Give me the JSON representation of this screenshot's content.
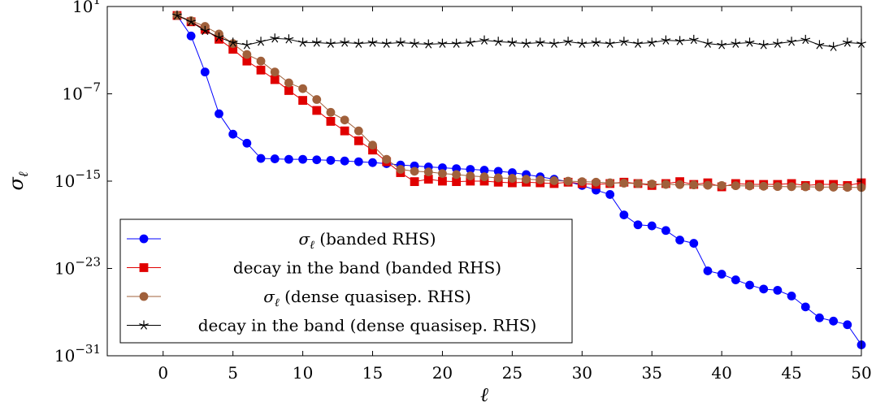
{
  "chart_data": {
    "type": "line",
    "xlabel": "ℓ",
    "ylabel": "σℓ",
    "x_scale": "linear",
    "y_scale": "log",
    "xlim": [
      -4,
      50
    ],
    "ylim": [
      1e-31,
      10.0
    ],
    "x_ticks": [
      0,
      5,
      10,
      15,
      20,
      25,
      30,
      35,
      40,
      45,
      50
    ],
    "x_tick_labels": [
      "0",
      "5",
      "10",
      "15",
      "20",
      "25",
      "30",
      "35",
      "40",
      "45",
      "50"
    ],
    "y_ticks": [
      {
        "value": 10.0,
        "base": "10",
        "exponent": "1"
      },
      {
        "value": 1e-07,
        "base": "10",
        "exponent": "−7"
      },
      {
        "value": 1e-15,
        "base": "10",
        "exponent": "−15"
      },
      {
        "value": 1e-23,
        "base": "10",
        "exponent": "−23"
      },
      {
        "value": 1e-31,
        "base": "10",
        "exponent": "−31"
      }
    ],
    "grid": false,
    "legend_position": "bottom-left",
    "series": [
      {
        "name": "σℓ (banded RHS)",
        "color": "#0000ff",
        "marker": "circle",
        "x": [
          1,
          2,
          3,
          4,
          5,
          6,
          7,
          8,
          9,
          10,
          11,
          12,
          13,
          14,
          15,
          16,
          17,
          18,
          19,
          20,
          21,
          22,
          23,
          24,
          25,
          26,
          27,
          28,
          29,
          30,
          31,
          32,
          33,
          34,
          35,
          36,
          37,
          38,
          39,
          40,
          41,
          42,
          43,
          44,
          45,
          46,
          47,
          48,
          49,
          50
        ],
        "y": [
          1.5,
          0.02,
          1e-05,
          1.5e-09,
          2e-11,
          3e-12,
          1.2e-13,
          1.1e-13,
          1e-13,
          1e-13,
          9e-14,
          8e-14,
          7e-14,
          6e-14,
          5e-14,
          4e-14,
          3e-14,
          2.5e-14,
          2e-14,
          1.7e-14,
          1.4e-14,
          1.2e-14,
          1e-14,
          8e-15,
          6e-15,
          4e-15,
          2.5e-15,
          1.5e-15,
          9e-16,
          4e-16,
          1.5e-16,
          6e-17,
          8e-19,
          1e-19,
          8e-20,
          3e-20,
          4e-21,
          2e-21,
          6e-24,
          3e-24,
          9e-25,
          3e-25,
          1.3e-25,
          1e-25,
          3e-26,
          3e-27,
          3e-28,
          1.5e-28,
          7e-29,
          1e-30
        ]
      },
      {
        "name": "decay in the band (banded RHS)",
        "color": "#e00000",
        "marker": "square",
        "x": [
          1,
          2,
          3,
          4,
          5,
          6,
          7,
          8,
          9,
          10,
          11,
          12,
          13,
          14,
          15,
          16,
          17,
          18,
          19,
          20,
          21,
          22,
          23,
          24,
          25,
          26,
          27,
          28,
          29,
          30,
          31,
          32,
          33,
          34,
          35,
          36,
          37,
          38,
          39,
          40,
          41,
          42,
          43,
          44,
          45,
          46,
          47,
          48,
          49,
          50
        ],
        "y": [
          1.5,
          0.4,
          0.08,
          0.01,
          0.0012,
          0.0001,
          1.5e-05,
          2e-06,
          2e-07,
          2.5e-08,
          3e-09,
          3e-10,
          4e-11,
          5e-12,
          7e-13,
          6e-14,
          6e-15,
          9e-16,
          1.5e-15,
          1e-15,
          9e-16,
          1e-15,
          1e-15,
          8e-16,
          7e-16,
          8e-16,
          7e-16,
          6e-16,
          8e-16,
          6e-16,
          5e-16,
          6e-16,
          8e-16,
          6e-16,
          4e-16,
          6e-16,
          9e-16,
          5e-16,
          7e-16,
          3e-16,
          6e-16,
          5e-16,
          5e-16,
          5e-16,
          6e-16,
          4e-16,
          5e-16,
          5e-16,
          4e-16,
          7e-16
        ]
      },
      {
        "name": "σℓ (dense quasisep. RHS)",
        "color": "#a0603b",
        "marker": "circle",
        "x": [
          1,
          2,
          3,
          4,
          5,
          6,
          7,
          8,
          9,
          10,
          11,
          12,
          13,
          14,
          15,
          16,
          17,
          18,
          19,
          20,
          21,
          22,
          23,
          24,
          25,
          26,
          27,
          28,
          29,
          30,
          31,
          32,
          33,
          34,
          35,
          36,
          37,
          38,
          39,
          40,
          41,
          42,
          43,
          44,
          45,
          46,
          47,
          48,
          49,
          50
        ],
        "y": [
          1.5,
          0.5,
          0.15,
          0.03,
          0.004,
          0.0004,
          0.0001,
          1e-05,
          1e-06,
          3e-07,
          3e-08,
          2e-09,
          4e-10,
          4e-11,
          2e-12,
          1e-13,
          1.2e-14,
          8e-15,
          7e-15,
          5e-15,
          4e-15,
          3e-15,
          2.5e-15,
          2e-15,
          1.8e-15,
          1.5e-15,
          1.3e-15,
          1.1e-15,
          1e-15,
          9e-16,
          8e-16,
          7e-16,
          6.5e-16,
          6e-16,
          5.5e-16,
          5e-16,
          4.8e-16,
          4.5e-16,
          4.2e-16,
          4e-16,
          3.8e-16,
          3.6e-16,
          3.4e-16,
          3.2e-16,
          3.1e-16,
          3e-16,
          2.9e-16,
          2.8e-16,
          2.7e-16,
          2.6e-16
        ]
      },
      {
        "name": "decay in the band (dense quasisep. RHS)",
        "color": "#000000",
        "marker": "star",
        "x": [
          1,
          2,
          3,
          4,
          5,
          6,
          7,
          8,
          9,
          10,
          11,
          12,
          13,
          14,
          15,
          16,
          17,
          18,
          19,
          20,
          21,
          22,
          23,
          24,
          25,
          26,
          27,
          28,
          29,
          30,
          31,
          32,
          33,
          34,
          35,
          36,
          37,
          38,
          39,
          40,
          41,
          42,
          43,
          44,
          45,
          46,
          47,
          48,
          49,
          50
        ],
        "y": [
          1.5,
          0.4,
          0.06,
          0.015,
          0.005,
          0.003,
          0.006,
          0.012,
          0.01,
          0.005,
          0.005,
          0.004,
          0.005,
          0.004,
          0.005,
          0.004,
          0.005,
          0.004,
          0.0035,
          0.004,
          0.004,
          0.005,
          0.008,
          0.006,
          0.005,
          0.004,
          0.005,
          0.004,
          0.006,
          0.004,
          0.005,
          0.004,
          0.006,
          0.004,
          0.005,
          0.008,
          0.007,
          0.009,
          0.004,
          0.003,
          0.004,
          0.005,
          0.003,
          0.004,
          0.006,
          0.009,
          0.003,
          0.002,
          0.005,
          0.004
        ]
      }
    ]
  }
}
